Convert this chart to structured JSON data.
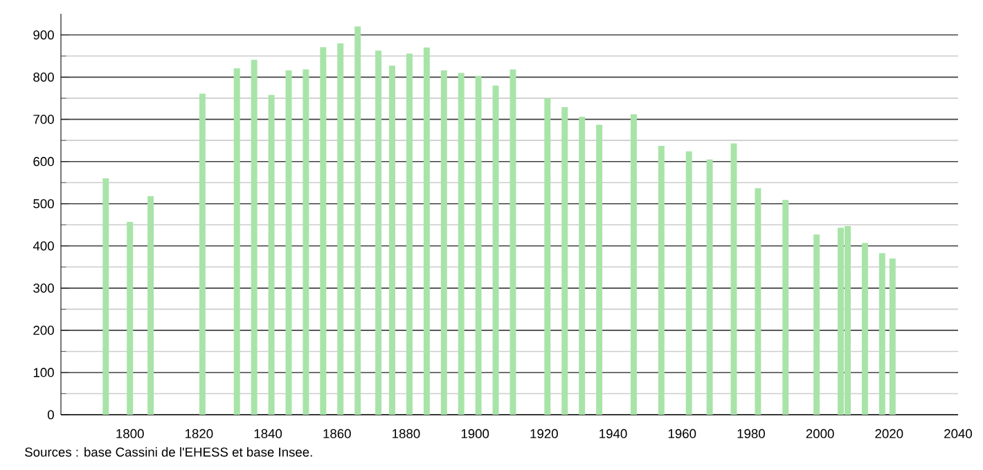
{
  "chart_data": {
    "type": "bar",
    "series": [
      {
        "color": "#a8e4a8",
        "x": [
          1793,
          1800,
          1806,
          1821,
          1831,
          1836,
          1841,
          1846,
          1851,
          1856,
          1861,
          1866,
          1872,
          1876,
          1881,
          1886,
          1891,
          1896,
          1901,
          1906,
          1911,
          1921,
          1926,
          1931,
          1936,
          1946,
          1954,
          1962,
          1968,
          1975,
          1982,
          1990,
          1999,
          2006,
          2008,
          2013,
          2018,
          2021
        ],
        "values": [
          560,
          457,
          518,
          761,
          821,
          841,
          758,
          816,
          818,
          871,
          880,
          920,
          863,
          827,
          856,
          870,
          816,
          810,
          803,
          780,
          818,
          750,
          729,
          706,
          687,
          712,
          637,
          624,
          605,
          643,
          537,
          509,
          427,
          443,
          447,
          407,
          383,
          370
        ]
      }
    ],
    "xlim": [
      1780,
      2040
    ],
    "xticks": [
      1800,
      1820,
      1840,
      1860,
      1880,
      1900,
      1920,
      1940,
      1960,
      1980,
      2000,
      2020,
      2040
    ],
    "ylim": [
      0,
      950
    ],
    "yticks": [
      0,
      100,
      200,
      300,
      400,
      500,
      600,
      700,
      800,
      900
    ],
    "grid": "y",
    "annotations": [
      "Sources : base Cassini de l'EHESS et base Insee."
    ]
  }
}
